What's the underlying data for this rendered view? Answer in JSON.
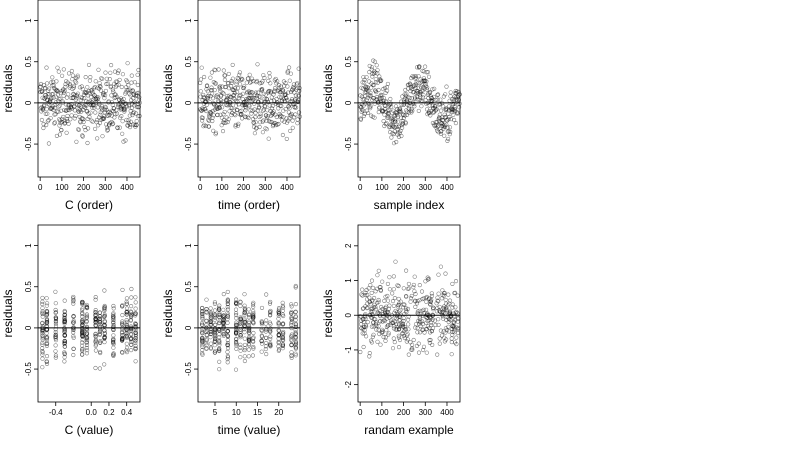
{
  "chart_data": [
    {
      "type": "scatter",
      "xlabel": "C (order)",
      "ylabel": "residuals",
      "xlim": [
        -10,
        460
      ],
      "ylim": [
        -0.9,
        1.25
      ],
      "xticks": [
        0,
        100,
        200,
        300,
        400
      ],
      "yticks": [
        -0.5,
        0.0,
        0.5,
        1.0
      ],
      "reference_line_y": 0,
      "n_points": 460,
      "point_style": "open-circle",
      "distribution": "sequence"
    },
    {
      "type": "scatter",
      "xlabel": "time (order)",
      "ylabel": "residuals",
      "xlim": [
        -10,
        460
      ],
      "ylim": [
        -0.9,
        1.25
      ],
      "xticks": [
        0,
        100,
        200,
        300,
        400
      ],
      "yticks": [
        -0.5,
        0.0,
        0.5,
        1.0
      ],
      "reference_line_y": 0,
      "n_points": 460,
      "point_style": "open-circle",
      "distribution": "sequence"
    },
    {
      "type": "scatter",
      "xlabel": "sample index",
      "ylabel": "residuals",
      "xlim": [
        -10,
        460
      ],
      "ylim": [
        -0.9,
        1.25
      ],
      "xticks": [
        0,
        100,
        200,
        300,
        400
      ],
      "yticks": [
        -0.5,
        0.0,
        0.5,
        1.0
      ],
      "reference_line_y": 0,
      "n_points": 460,
      "point_style": "open-circle",
      "distribution": "sequence-wave"
    },
    {
      "type": "scatter",
      "xlabel": "C (value)",
      "ylabel": "residuals",
      "xlim": [
        -0.6,
        0.55
      ],
      "ylim": [
        -0.9,
        1.25
      ],
      "xticks": [
        -0.4,
        0.0,
        0.2,
        0.4
      ],
      "xticklabels": [
        "-0.4",
        "0.0",
        "0.2",
        "0.4"
      ],
      "yticks": [
        -0.5,
        0.0,
        0.5,
        1.0
      ],
      "reference_line_y": 0,
      "n_points": 460,
      "point_style": "open-circle",
      "distribution": "columns",
      "x_columns": [
        -0.55,
        -0.5,
        -0.4,
        -0.3,
        -0.2,
        -0.1,
        -0.05,
        0.05,
        0.1,
        0.15,
        0.25,
        0.35,
        0.4,
        0.45,
        0.5
      ]
    },
    {
      "type": "scatter",
      "xlabel": "time (value)",
      "ylabel": "residuals",
      "xlim": [
        1,
        25
      ],
      "ylim": [
        -0.9,
        1.25
      ],
      "xticks": [
        5,
        10,
        15,
        20
      ],
      "yticks": [
        -0.5,
        0.0,
        0.5,
        1.0
      ],
      "reference_line_y": 0,
      "n_points": 460,
      "point_style": "open-circle",
      "distribution": "columns",
      "x_columns": [
        2,
        3,
        4,
        5,
        6,
        7,
        8,
        10,
        11,
        12,
        13,
        14,
        16,
        17,
        18,
        20,
        21,
        23,
        24
      ]
    },
    {
      "type": "scatter",
      "xlabel": "randam example",
      "ylabel": "residuals",
      "xlim": [
        -10,
        460
      ],
      "ylim": [
        -2.5,
        2.6
      ],
      "xticks": [
        0,
        100,
        200,
        300,
        400
      ],
      "yticks": [
        -2,
        -1,
        0,
        1,
        2
      ],
      "reference_line_y": 0,
      "n_points": 460,
      "point_style": "open-circle",
      "distribution": "random"
    }
  ]
}
